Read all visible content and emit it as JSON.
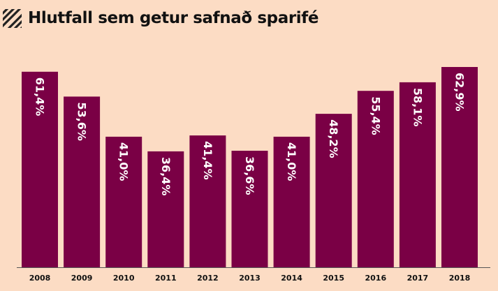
{
  "header": {
    "title": "Hlutfall sem getur safnað sparifé",
    "icon": "diagonal-hatch-icon"
  },
  "colors": {
    "background": "#fcdcc4",
    "bar": "#7a0045",
    "axis": "#555555"
  },
  "chart_data": {
    "type": "bar",
    "title": "Hlutfall sem getur safnað sparifé",
    "xlabel": "",
    "ylabel": "",
    "grid": false,
    "ylim": [
      0,
      70
    ],
    "categories": [
      "2008",
      "2009",
      "2010",
      "2011",
      "2012",
      "2013",
      "2014",
      "2015",
      "2016",
      "2017",
      "2018"
    ],
    "values": [
      61.4,
      53.6,
      41.0,
      36.4,
      41.4,
      36.6,
      41.0,
      48.2,
      55.4,
      58.1,
      62.9
    ],
    "data_labels": [
      "61,4%",
      "53,6%",
      "41,0%",
      "36,4%",
      "41,4%",
      "36,6%",
      "41,0%",
      "48,2%",
      "55,4%",
      "58,1%",
      "62,9%"
    ]
  }
}
